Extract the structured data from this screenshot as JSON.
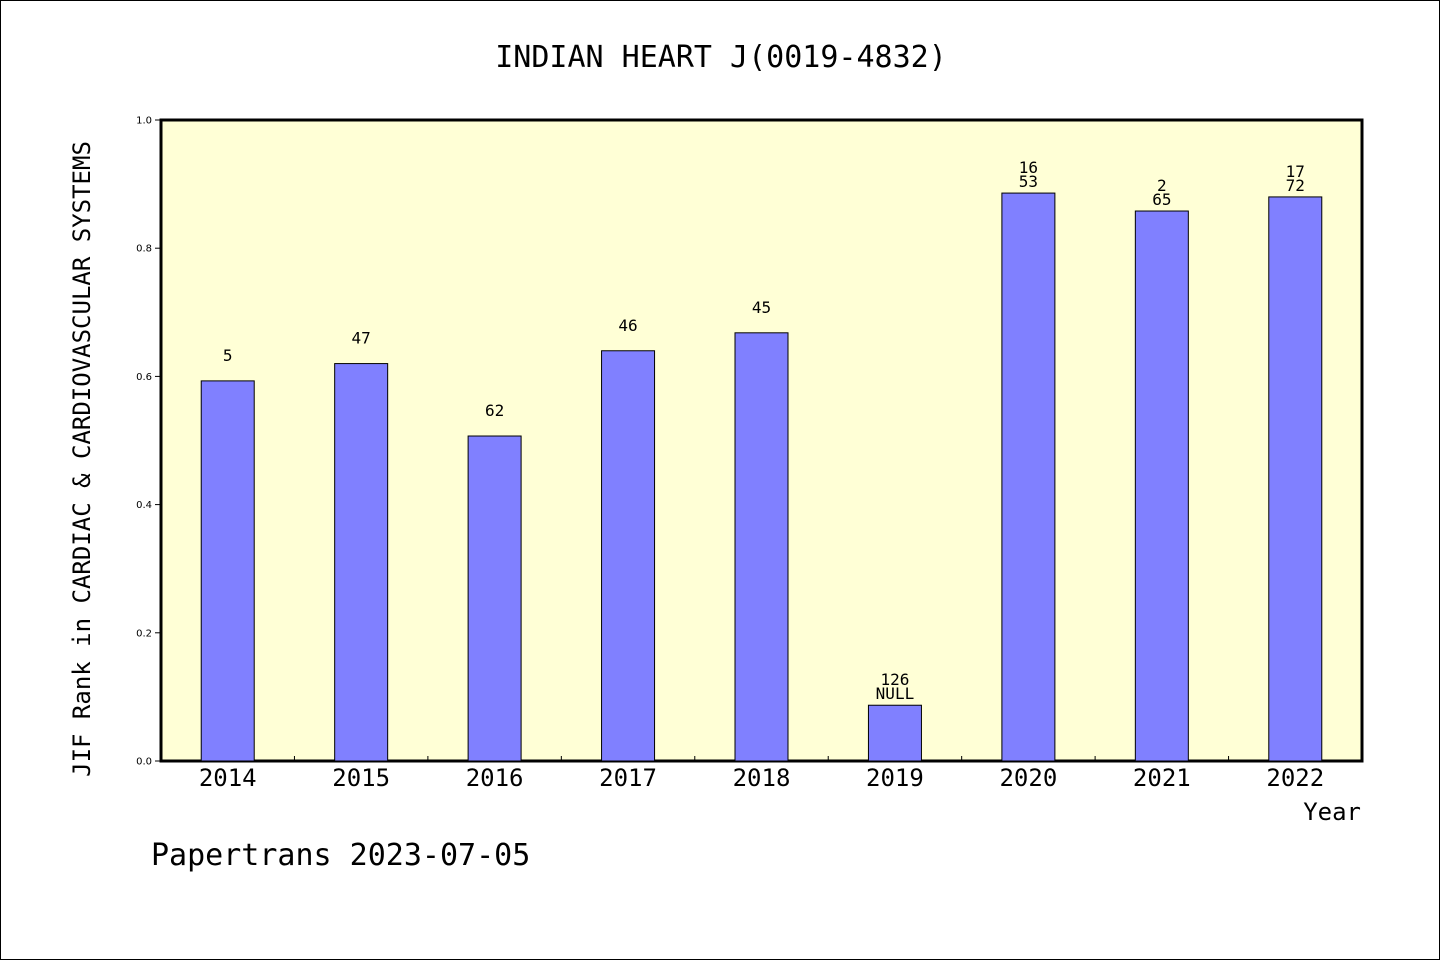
{
  "chart_data": {
    "type": "bar",
    "title": "INDIAN HEART J(0019-4832)",
    "xlabel": "Year",
    "ylabel": "JIF Rank in CARDIAC & CARDIOVASCULAR SYSTEMS",
    "ylim": [
      0,
      1.0
    ],
    "yticks": [
      "0.0",
      "0.2",
      "0.4",
      "0.6",
      "0.8",
      "1.0"
    ],
    "categories": [
      "2014",
      "2015",
      "2016",
      "2017",
      "2018",
      "2019",
      "2020",
      "2021",
      "2022"
    ],
    "values": [
      0.593,
      0.62,
      0.507,
      0.64,
      0.668,
      0.087,
      0.886,
      0.858,
      0.88
    ],
    "labels": [
      [
        "5"
      ],
      [
        "47"
      ],
      [
        "62"
      ],
      [
        "46"
      ],
      [
        "45"
      ],
      [
        "126",
        "NULL"
      ],
      [
        "16",
        "53"
      ],
      [
        "2",
        "65"
      ],
      [
        "17",
        "72"
      ]
    ],
    "colors": {
      "plot_background": "#ffffd6",
      "bar_fill": "#8080ff",
      "bar_stroke": "#000000"
    },
    "grid": false
  },
  "footer": {
    "text": "Papertrans 2023-07-05"
  }
}
